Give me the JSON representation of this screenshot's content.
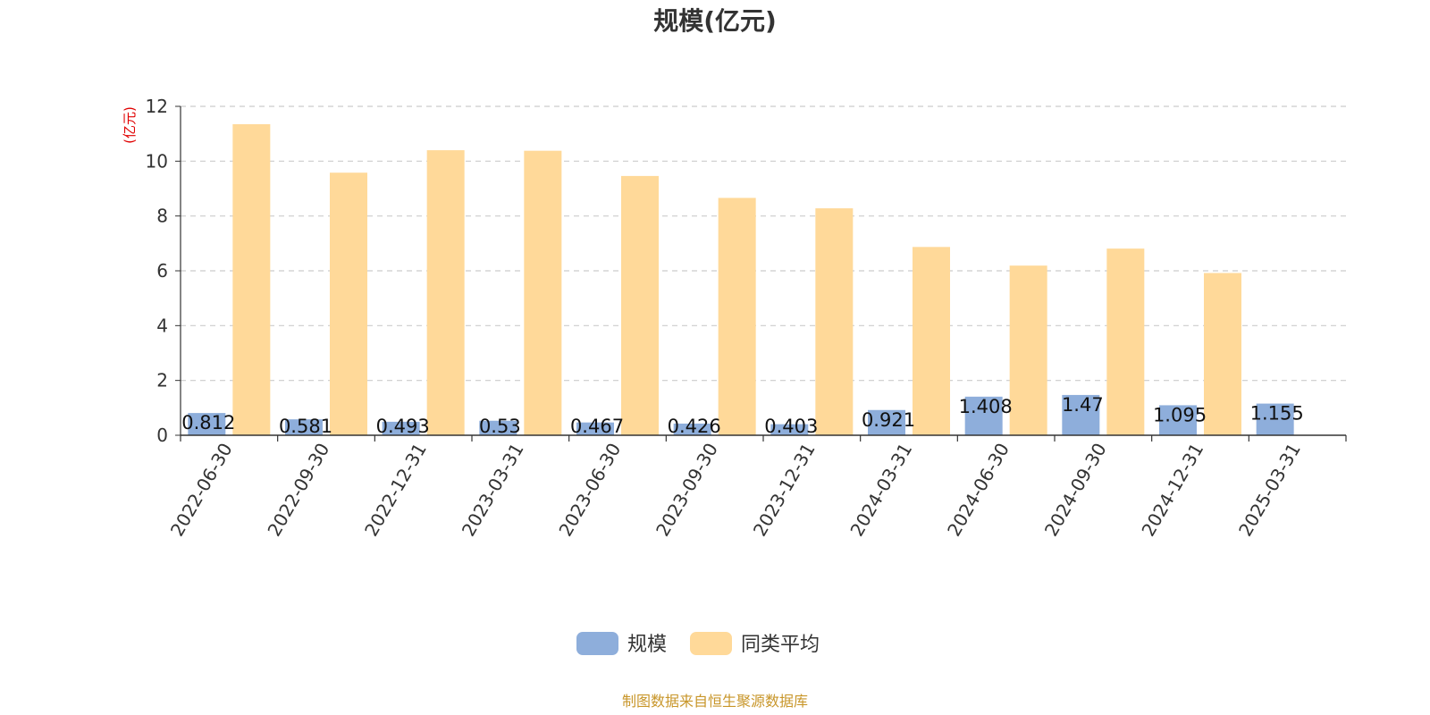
{
  "chart_data": {
    "type": "bar",
    "title": "规模(亿元)",
    "ylabel": "(亿元)",
    "ylim": [
      0,
      12
    ],
    "yticks": [
      0,
      2,
      4,
      6,
      8,
      10,
      12
    ],
    "grid": true,
    "legend_position": "bottom",
    "categories": [
      "2022-06-30",
      "2022-09-30",
      "2022-12-31",
      "2023-03-31",
      "2023-06-30",
      "2023-09-30",
      "2023-12-31",
      "2024-03-31",
      "2024-06-30",
      "2024-09-30",
      "2024-12-31",
      "2025-03-31"
    ],
    "series": [
      {
        "name": "规模",
        "color": "#8eaedb",
        "values": [
          0.812,
          0.581,
          0.493,
          0.53,
          0.467,
          0.426,
          0.403,
          0.921,
          1.408,
          1.47,
          1.095,
          1.155
        ],
        "data_labels": [
          "0.812",
          "0.581",
          "0.493",
          "0.53",
          "0.467",
          "0.426",
          "0.403",
          "0.921",
          "1.408",
          "1.47",
          "1.095",
          "1.155"
        ]
      },
      {
        "name": "同类平均",
        "color": "#ffd999",
        "values": [
          11.35,
          9.58,
          10.4,
          10.38,
          9.46,
          8.66,
          8.28,
          6.87,
          6.19,
          6.81,
          5.92,
          null
        ]
      }
    ]
  },
  "footer": {
    "source": "制图数据来自恒生聚源数据库"
  }
}
